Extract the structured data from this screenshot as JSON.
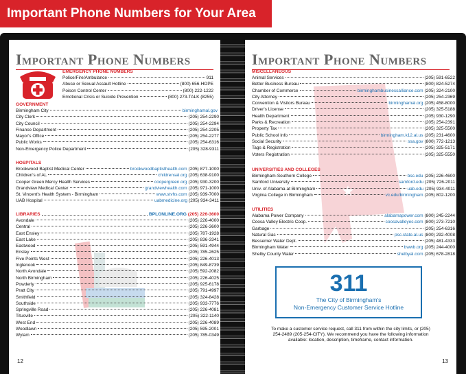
{
  "banner": "Important Phone Numbers for Your Area",
  "left_page": {
    "title": "Important Phone Numbers",
    "page_number": "12",
    "sections": [
      {
        "heading": "Emergency Phone Numbers",
        "entries": [
          {
            "name": "Police/Fire/Ambulance",
            "phone": "911"
          },
          {
            "name": "Abuse or Sexual Assault Hotline",
            "phone": "(800) 656-HOPE"
          },
          {
            "name": "Poison Control Center",
            "phone": "(800) 222-1222"
          },
          {
            "name": "Emotional Crisis or Suicide Prevention",
            "phone": "(800) 273-TALK (8255)"
          }
        ]
      },
      {
        "heading": "Government",
        "entries": [
          {
            "name": "Birmingham City",
            "url": "birminghamal.gov"
          },
          {
            "name": "City Clerk",
            "phone": "(205) 254-2290"
          },
          {
            "name": "City Council",
            "phone": "(205) 254-2294"
          },
          {
            "name": "Finance Department",
            "phone": "(205) 254-2205"
          },
          {
            "name": "Mayor's Office",
            "phone": "(205) 254-2277"
          },
          {
            "name": "Public Works",
            "phone": "(205) 254-6316"
          },
          {
            "name": "Non-Emergency Police Department",
            "phone": "(205) 328-9311"
          }
        ]
      },
      {
        "heading": "Hospitals",
        "entries": [
          {
            "name": "Brookwood Baptist Medical Center",
            "url": "brookwoodbaptisthealth.com",
            "phone": "(205) 877-1000"
          },
          {
            "name": "Children's of AL",
            "url": "childrensal.org",
            "phone": "(205) 638-9100"
          },
          {
            "name": "Cooper Green Mercy Health Services",
            "url": "coopergreen.org",
            "phone": "(205) 930-3200"
          },
          {
            "name": "Grandview Medical Center",
            "url": "grandviewhealth.com",
            "phone": "(205) 971-1000"
          },
          {
            "name": "St. Vincent's Health System - Birmingham",
            "url": "www.stvhs.com",
            "phone": "(205) 939-7000"
          },
          {
            "name": "UAB Hospital",
            "url": "uabmedicine.org",
            "phone": "(205) 934-3411"
          }
        ]
      },
      {
        "heading": "Libraries",
        "url": "bplonline.org",
        "phone": "(205) 226-3600",
        "entries": [
          {
            "name": "Avondale",
            "phone": "(205) 226-4000"
          },
          {
            "name": "Central",
            "phone": "(205) 226-3600"
          },
          {
            "name": "East Ensley",
            "phone": "(205) 787-1928"
          },
          {
            "name": "East Lake",
            "phone": "(205) 836-3341"
          },
          {
            "name": "Eastwood",
            "phone": "(205) 591-4944"
          },
          {
            "name": "Ensley",
            "phone": "(205) 785-2625"
          },
          {
            "name": "Five Points West",
            "phone": "(205) 226-4013"
          },
          {
            "name": "Inglenook",
            "phone": "(205) 849-8739"
          },
          {
            "name": "North Avondale",
            "phone": "(205) 592-2082"
          },
          {
            "name": "North Birmingham",
            "phone": "(205) 226-4025"
          },
          {
            "name": "Powderly",
            "phone": "(205) 925-6178"
          },
          {
            "name": "Pratt City",
            "phone": "(205) 791-4997"
          },
          {
            "name": "Smithfield",
            "phone": "(205) 324-8428"
          },
          {
            "name": "Southside",
            "phone": "(205) 933-7776"
          },
          {
            "name": "Springville Road",
            "phone": "(205) 226-4081"
          },
          {
            "name": "Titusville",
            "phone": "(205) 322-1140"
          },
          {
            "name": "West End",
            "phone": "(205) 226-4089"
          },
          {
            "name": "Woodlawn",
            "phone": "(205) 595-2001"
          },
          {
            "name": "Wylam",
            "phone": "(205) 785-0349"
          }
        ]
      }
    ]
  },
  "right_page": {
    "title": "Important Phone Numbers",
    "page_number": "13",
    "sections": [
      {
        "heading": "Miscellaneous",
        "entries": [
          {
            "name": "Animal Services",
            "phone": "(205) 591-6522"
          },
          {
            "name": "Better Business Bureau",
            "phone": "(800) 824-5274"
          },
          {
            "name": "Chamber of Commerce",
            "url": "birminghambusinessalliance.com",
            "phone": "(205) 324-2100"
          },
          {
            "name": "City Attorney",
            "phone": "(205) 254-2369"
          },
          {
            "name": "Convention & Visitors Bureau",
            "url": "birminghamal.org",
            "phone": "(205) 458-8000"
          },
          {
            "name": "Driver's License",
            "phone": "(205) 325-5188"
          },
          {
            "name": "Health Department",
            "phone": "(205) 930-1290"
          },
          {
            "name": "Parks & Recreation",
            "phone": "(205) 254-2391"
          },
          {
            "name": "Property Tax",
            "phone": "(205) 325-5500"
          },
          {
            "name": "Public School Info",
            "url": "birmingham.k12.al.us",
            "phone": "(205) 231-4600"
          },
          {
            "name": "Social Security",
            "url": "ssa.gov",
            "phone": "(800) 772-1213"
          },
          {
            "name": "Tags & Registration",
            "phone": "(205) 325-5171"
          },
          {
            "name": "Voters Registration",
            "phone": "(205) 325-5550"
          }
        ]
      },
      {
        "heading": "Universities and Colleges",
        "entries": [
          {
            "name": "Birmingham-Southern College",
            "url": "bsc.edu",
            "phone": "(205) 226-4600"
          },
          {
            "name": "Samford University",
            "url": "samford.edu",
            "phone": "(205) 726-2011"
          },
          {
            "name": "Univ. of Alabama at Birmingham",
            "url": "uab.edu",
            "phone": "(205) 934-4011"
          },
          {
            "name": "Virginia College in Birmingham",
            "url": "vc.edu/birmingham",
            "phone": "(205) 802-1200"
          }
        ]
      },
      {
        "heading": "Utilities",
        "entries": [
          {
            "name": "Alabama Power Company",
            "url": "alabamapower.com",
            "phone": "(800) 245-2244"
          },
          {
            "name": "Coosa Valley Electric Coop.",
            "url": "coosavalleyec.com",
            "phone": "(800) 273-7210"
          },
          {
            "name": "Garbage",
            "phone": "(205) 254-6316"
          },
          {
            "name": "Natural Gas",
            "url": "psc.state.al.us",
            "phone": "(800) 292-4008"
          },
          {
            "name": "Bessemer Water Dept.",
            "phone": "(205) 481-4333"
          },
          {
            "name": "Birmingham Water",
            "url": "bwwb.org",
            "phone": "(205) 244-4000"
          },
          {
            "name": "Shelby County Water",
            "url": "shelbyal.com",
            "phone": "(205) 678-2818"
          }
        ]
      }
    ],
    "hotline": {
      "number": "311",
      "line1": "The City of Birmingham's",
      "line2": "Non-Emergency Customer Service Hotline"
    },
    "note": "To make a customer service request, call 311 from within the city limits, or (205) 254-2489 (205-254-CITY). We recommend you have the following information available: location, description, timeframe, contact information."
  }
}
